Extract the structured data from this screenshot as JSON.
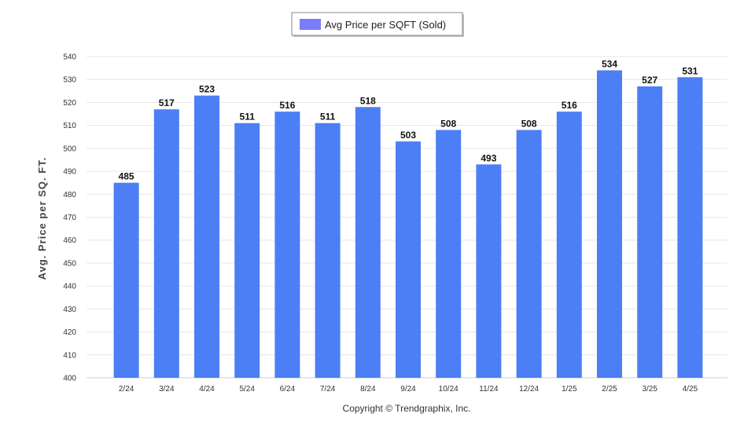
{
  "chart_data": {
    "type": "bar",
    "categories": [
      "2/24",
      "3/24",
      "4/24",
      "5/24",
      "6/24",
      "7/24",
      "8/24",
      "9/24",
      "10/24",
      "11/24",
      "12/24",
      "1/25",
      "2/25",
      "3/25",
      "4/25"
    ],
    "series": [
      {
        "name": "Avg Price per SQFT (Sold)",
        "values": [
          485,
          517,
          523,
          511,
          516,
          511,
          518,
          503,
          508,
          493,
          508,
          516,
          534,
          527,
          531
        ],
        "color": "#4c7ff5"
      }
    ],
    "ylabel": "Avg. Price per SQ. FT.",
    "xlabel": "",
    "ylim": [
      400,
      540
    ],
    "yticks": [
      400,
      410,
      420,
      430,
      440,
      450,
      460,
      470,
      480,
      490,
      500,
      510,
      520,
      530,
      540
    ],
    "grid": true,
    "legend_position": "top-center",
    "data_labels": true
  },
  "footer": {
    "copyright": "Copyright © Trendgraphix, Inc."
  },
  "colors": {
    "bar": "#4c7ff5",
    "legend_swatch": "#7b7cf8",
    "grid": "#e6e6e6"
  }
}
